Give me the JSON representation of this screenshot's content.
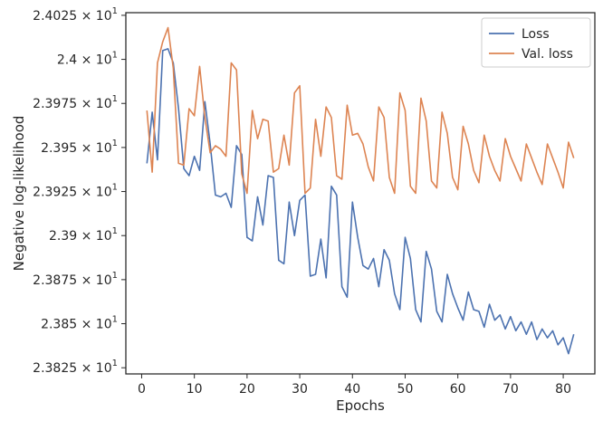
{
  "chart_data": {
    "type": "line",
    "xlabel": "Epochs",
    "ylabel": "Negative log-likelihood",
    "xlim": [
      -3,
      86
    ],
    "ylim": [
      23.8215,
      24.0265
    ],
    "xticks": [
      0,
      10,
      20,
      30,
      40,
      50,
      60,
      70,
      80
    ],
    "yticks": [
      {
        "value": 23.825,
        "mantissa": "2.3825",
        "base": "10",
        "exp": "1"
      },
      {
        "value": 23.85,
        "mantissa": "2.385",
        "base": "10",
        "exp": "1"
      },
      {
        "value": 23.875,
        "mantissa": "2.3875",
        "base": "10",
        "exp": "1"
      },
      {
        "value": 23.9,
        "mantissa": "2.39",
        "base": "10",
        "exp": "1"
      },
      {
        "value": 23.925,
        "mantissa": "2.3925",
        "base": "10",
        "exp": "1"
      },
      {
        "value": 23.95,
        "mantissa": "2.395",
        "base": "10",
        "exp": "1"
      },
      {
        "value": 23.975,
        "mantissa": "2.3975",
        "base": "10",
        "exp": "1"
      },
      {
        "value": 24.0,
        "mantissa": "2.4",
        "base": "10",
        "exp": "1"
      },
      {
        "value": 24.025,
        "mantissa": "2.4025",
        "base": "10",
        "exp": "1"
      }
    ],
    "legend_position": "top-right",
    "grid": false,
    "x": [
      1,
      2,
      3,
      4,
      5,
      6,
      7,
      8,
      9,
      10,
      11,
      12,
      13,
      14,
      15,
      16,
      17,
      18,
      19,
      20,
      21,
      22,
      23,
      24,
      25,
      26,
      27,
      28,
      29,
      30,
      31,
      32,
      33,
      34,
      35,
      36,
      37,
      38,
      39,
      40,
      41,
      42,
      43,
      44,
      45,
      46,
      47,
      48,
      49,
      50,
      51,
      52,
      53,
      54,
      55,
      56,
      57,
      58,
      59,
      60,
      61,
      62,
      63,
      64,
      65,
      66,
      67,
      68,
      69,
      70,
      71,
      72,
      73,
      74,
      75,
      76,
      77,
      78,
      79,
      80,
      81,
      82
    ],
    "series": [
      {
        "name": "Loss",
        "color": "#4c72b0",
        "values": [
          23.941,
          23.97,
          23.943,
          24.005,
          24.006,
          23.998,
          23.972,
          23.938,
          23.934,
          23.945,
          23.937,
          23.976,
          23.952,
          23.923,
          23.922,
          23.924,
          23.916,
          23.951,
          23.946,
          23.899,
          23.897,
          23.922,
          23.906,
          23.934,
          23.933,
          23.886,
          23.884,
          23.919,
          23.9,
          23.92,
          23.923,
          23.877,
          23.878,
          23.898,
          23.876,
          23.928,
          23.923,
          23.871,
          23.865,
          23.919,
          23.899,
          23.883,
          23.881,
          23.887,
          23.871,
          23.892,
          23.886,
          23.867,
          23.858,
          23.899,
          23.887,
          23.858,
          23.851,
          23.891,
          23.881,
          23.857,
          23.851,
          23.878,
          23.867,
          23.859,
          23.852,
          23.868,
          23.858,
          23.857,
          23.848,
          23.861,
          23.852,
          23.855,
          23.847,
          23.854,
          23.846,
          23.851,
          23.844,
          23.851,
          23.841,
          23.847,
          23.842,
          23.846,
          23.838,
          23.842,
          23.833,
          23.844
        ]
      },
      {
        "name": "Val. loss",
        "color": "#dd8452",
        "values": [
          23.971,
          23.936,
          23.998,
          24.01,
          24.018,
          23.995,
          23.941,
          23.94,
          23.972,
          23.968,
          23.996,
          23.967,
          23.947,
          23.951,
          23.949,
          23.945,
          23.998,
          23.994,
          23.935,
          23.924,
          23.971,
          23.955,
          23.966,
          23.965,
          23.936,
          23.938,
          23.957,
          23.94,
          23.981,
          23.985,
          23.924,
          23.927,
          23.966,
          23.945,
          23.973,
          23.967,
          23.934,
          23.932,
          23.974,
          23.957,
          23.958,
          23.952,
          23.939,
          23.931,
          23.973,
          23.967,
          23.933,
          23.924,
          23.981,
          23.971,
          23.928,
          23.924,
          23.978,
          23.965,
          23.931,
          23.927,
          23.97,
          23.958,
          23.933,
          23.926,
          23.962,
          23.952,
          23.937,
          23.93,
          23.957,
          23.945,
          23.937,
          23.931,
          23.955,
          23.945,
          23.938,
          23.931,
          23.952,
          23.944,
          23.936,
          23.929,
          23.952,
          23.944,
          23.936,
          23.927,
          23.953,
          23.944
        ]
      }
    ]
  }
}
